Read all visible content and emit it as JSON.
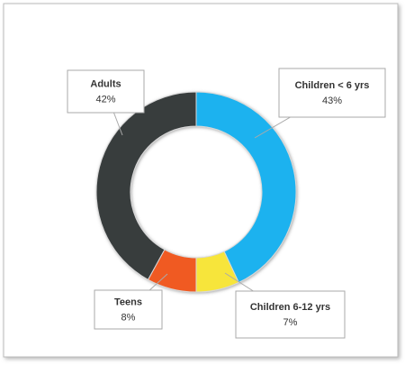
{
  "chart_data": {
    "type": "donut",
    "categories": [
      "Children < 6 yrs",
      "Children 6-12 yrs",
      "Teens",
      "Adults"
    ],
    "values": [
      43,
      7,
      8,
      42
    ],
    "value_labels": [
      "43%",
      "7%",
      "8%",
      "42%"
    ],
    "colors": [
      "#1ab2ef",
      "#f7e53a",
      "#f05a22",
      "#383c3e"
    ]
  }
}
